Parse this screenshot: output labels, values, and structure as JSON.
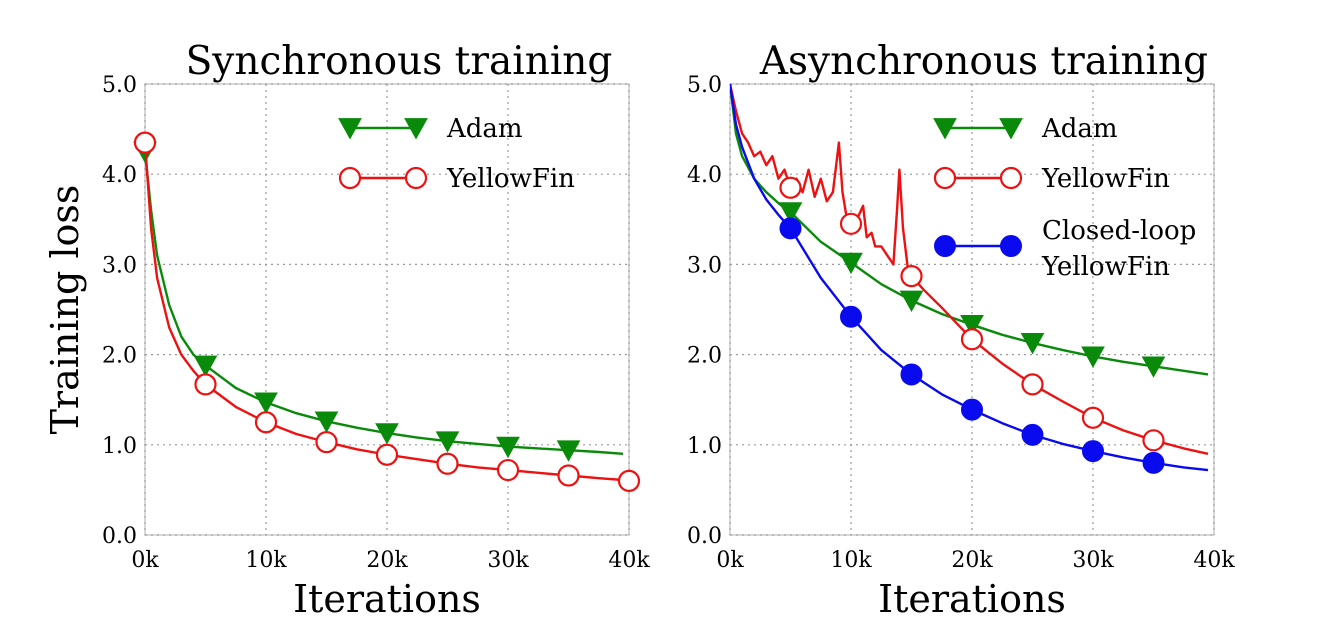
{
  "colors": {
    "adam": "#0a8a0a",
    "yellowfin": "#ee1111",
    "closed_loop": "#0a0aee"
  },
  "chart_data": [
    {
      "type": "line",
      "title": "Synchronous training",
      "xlabel": "Iterations",
      "ylabel": "Training loss",
      "xlim": [
        0,
        40000
      ],
      "ylim": [
        0,
        5.0
      ],
      "xticks": [
        0,
        10000,
        20000,
        30000,
        40000
      ],
      "xtick_labels": [
        "0k",
        "10k",
        "20k",
        "30k",
        "40k"
      ],
      "yticks": [
        0,
        1,
        2,
        3,
        4,
        5
      ],
      "ytick_labels": [
        "0.0",
        "1.0",
        "2.0",
        "3.0",
        "4.0",
        "5.0"
      ],
      "grid": true,
      "legend_position": "top-right",
      "series": [
        {
          "name": "Adam",
          "color": "#0a8a0a",
          "marker": "triangle-down",
          "x": [
            0,
            500,
            1000,
            2000,
            3000,
            4000,
            5000,
            7500,
            10000,
            12500,
            15000,
            17500,
            20000,
            22500,
            25000,
            27500,
            30000,
            32500,
            35000,
            37500,
            39500
          ],
          "y": [
            4.25,
            3.6,
            3.1,
            2.55,
            2.2,
            2.0,
            1.88,
            1.63,
            1.47,
            1.35,
            1.26,
            1.19,
            1.13,
            1.08,
            1.04,
            1.01,
            0.98,
            0.96,
            0.94,
            0.92,
            0.9
          ],
          "marker_x": [
            0,
            5000,
            10000,
            15000,
            20000,
            25000,
            30000,
            35000
          ],
          "marker_y": [
            4.25,
            1.88,
            1.47,
            1.26,
            1.13,
            1.04,
            0.98,
            0.94
          ]
        },
        {
          "name": "YellowFin",
          "color": "#ee1111",
          "marker": "circle-open",
          "x": [
            0,
            500,
            1000,
            2000,
            3000,
            4000,
            5000,
            7500,
            10000,
            12500,
            15000,
            17500,
            20000,
            22500,
            25000,
            27500,
            30000,
            32500,
            35000,
            37500,
            39500
          ],
          "y": [
            4.35,
            3.4,
            2.85,
            2.3,
            2.0,
            1.82,
            1.67,
            1.42,
            1.25,
            1.12,
            1.03,
            0.95,
            0.89,
            0.84,
            0.79,
            0.75,
            0.72,
            0.69,
            0.66,
            0.63,
            0.61
          ],
          "marker_x": [
            0,
            5000,
            10000,
            15000,
            20000,
            25000,
            30000,
            35000,
            40000
          ],
          "marker_y": [
            4.35,
            1.67,
            1.25,
            1.03,
            0.89,
            0.79,
            0.72,
            0.66,
            0.6
          ]
        }
      ]
    },
    {
      "type": "line",
      "title": "Asynchronous training",
      "xlabel": "Iterations",
      "ylabel": "",
      "xlim": [
        0,
        40000
      ],
      "ylim": [
        0,
        5.0
      ],
      "xticks": [
        0,
        10000,
        20000,
        30000,
        40000
      ],
      "xtick_labels": [
        "0k",
        "10k",
        "20k",
        "30k",
        "40k"
      ],
      "yticks": [
        0,
        1,
        2,
        3,
        4,
        5
      ],
      "ytick_labels": [
        "0.0",
        "1.0",
        "2.0",
        "3.0",
        "4.0",
        "5.0"
      ],
      "grid": true,
      "legend_position": "top-right",
      "series": [
        {
          "name": "Adam",
          "color": "#0a8a0a",
          "marker": "triangle-down",
          "x": [
            0,
            500,
            1000,
            2000,
            3000,
            4000,
            5000,
            7500,
            10000,
            12500,
            15000,
            17500,
            20000,
            22500,
            25000,
            27500,
            30000,
            32500,
            35000,
            37500,
            39500
          ],
          "y": [
            5.0,
            4.45,
            4.2,
            3.95,
            3.8,
            3.68,
            3.58,
            3.25,
            3.02,
            2.78,
            2.6,
            2.45,
            2.33,
            2.22,
            2.13,
            2.05,
            1.98,
            1.92,
            1.87,
            1.82,
            1.78
          ],
          "marker_x": [
            5000,
            10000,
            15000,
            20000,
            25000,
            30000,
            35000
          ],
          "marker_y": [
            3.58,
            3.02,
            2.6,
            2.33,
            2.13,
            1.98,
            1.87
          ]
        },
        {
          "name": "YellowFin",
          "color": "#ee1111",
          "marker": "circle-open",
          "x": [
            0,
            500,
            1000,
            1500,
            2000,
            2500,
            3000,
            3500,
            4000,
            4500,
            5000,
            5500,
            6000,
            6500,
            7000,
            7500,
            8000,
            8500,
            9000,
            9300,
            9600,
            10000,
            10500,
            11000,
            11300,
            11700,
            12000,
            12500,
            13000,
            13500,
            13800,
            14000,
            14300,
            14700,
            15000,
            16000,
            17500,
            20000,
            22500,
            25000,
            27500,
            30000,
            32500,
            35000,
            37500,
            39500
          ],
          "y": [
            5.0,
            4.7,
            4.45,
            4.35,
            4.2,
            4.25,
            4.1,
            4.2,
            3.95,
            4.05,
            3.85,
            3.95,
            3.8,
            4.05,
            3.75,
            3.95,
            3.7,
            3.8,
            4.35,
            3.8,
            3.55,
            3.45,
            3.5,
            3.65,
            3.3,
            3.35,
            3.2,
            3.2,
            3.1,
            3.0,
            3.6,
            4.05,
            3.4,
            2.95,
            2.87,
            2.72,
            2.52,
            2.17,
            1.9,
            1.67,
            1.48,
            1.3,
            1.16,
            1.05,
            0.96,
            0.9
          ],
          "marker_x": [
            5000,
            10000,
            15000,
            20000,
            25000,
            30000,
            35000
          ],
          "marker_y": [
            3.85,
            3.45,
            2.87,
            2.17,
            1.67,
            1.3,
            1.05
          ]
        },
        {
          "name": "Closed-loop YellowFin",
          "name_lines": [
            "Closed-loop",
            "YellowFin"
          ],
          "color": "#0a0aee",
          "marker": "circle-filled",
          "x": [
            0,
            500,
            1000,
            2000,
            3000,
            4000,
            5000,
            7500,
            10000,
            12500,
            15000,
            17500,
            20000,
            22500,
            25000,
            27500,
            30000,
            32500,
            35000,
            37500,
            39500
          ],
          "y": [
            5.0,
            4.55,
            4.3,
            3.95,
            3.72,
            3.55,
            3.4,
            2.85,
            2.42,
            2.05,
            1.78,
            1.56,
            1.39,
            1.24,
            1.11,
            1.01,
            0.93,
            0.86,
            0.8,
            0.75,
            0.72
          ],
          "marker_x": [
            5000,
            10000,
            15000,
            20000,
            25000,
            30000,
            35000
          ],
          "marker_y": [
            3.4,
            2.42,
            1.78,
            1.39,
            1.11,
            0.93,
            0.8
          ]
        }
      ]
    }
  ]
}
